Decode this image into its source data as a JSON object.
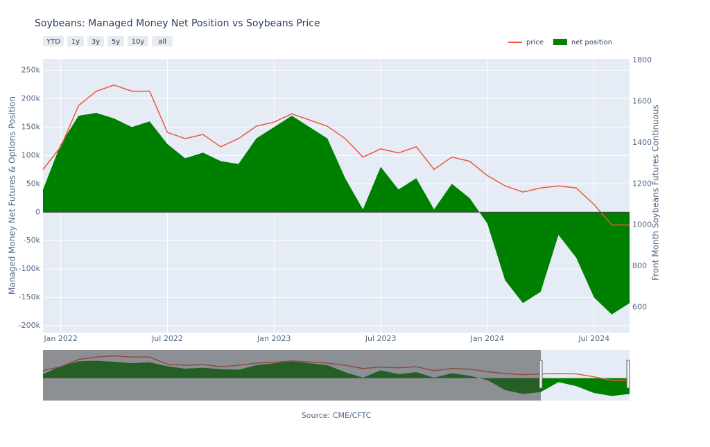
{
  "chart_data": {
    "type": "area-line",
    "title": "Soybeans: Managed Money Net Position vs Soybeans Price",
    "buttons": [
      "YTD",
      "1y",
      "3y",
      "5y",
      "10y",
      "all"
    ],
    "y_label": "Managed Money Net Futures & Options Position",
    "y2_label": "Front Month Soybeans Futures Continuous",
    "source": "Source: CME/CFTC",
    "x": [
      "2021-12",
      "2022-01",
      "2022-02",
      "2022-03",
      "2022-04",
      "2022-05",
      "2022-06",
      "2022-07",
      "2022-08",
      "2022-09",
      "2022-10",
      "2022-11",
      "2022-12",
      "2023-01",
      "2023-02",
      "2023-03",
      "2023-04",
      "2023-05",
      "2023-06",
      "2023-07",
      "2023-08",
      "2023-09",
      "2023-10",
      "2023-11",
      "2023-12",
      "2024-01",
      "2024-02",
      "2024-03",
      "2024-04",
      "2024-05",
      "2024-06",
      "2024-07",
      "2024-08",
      "2024-09"
    ],
    "series": [
      {
        "name": "price",
        "color": "#ef553b",
        "axis": "y2",
        "values": [
          1270,
          1380,
          1580,
          1650,
          1680,
          1650,
          1650,
          1450,
          1420,
          1440,
          1380,
          1420,
          1480,
          1500,
          1540,
          1510,
          1480,
          1420,
          1330,
          1370,
          1350,
          1380,
          1270,
          1330,
          1310,
          1240,
          1190,
          1160,
          1180,
          1190,
          1180,
          1100,
          1000,
          1000
        ]
      },
      {
        "name": "net position",
        "color": "#008000",
        "values": [
          40000,
          120000,
          170000,
          175000,
          165000,
          150000,
          160000,
          120000,
          95000,
          105000,
          90000,
          85000,
          130000,
          150000,
          170000,
          150000,
          130000,
          60000,
          5000,
          80000,
          40000,
          60000,
          5000,
          50000,
          25000,
          -20000,
          -120000,
          -160000,
          -140000,
          -40000,
          -80000,
          -150000,
          -180000,
          -160000
        ]
      }
    ],
    "xlim": [
      "2021-12",
      "2024-09"
    ],
    "xticks": [
      {
        "value": "2022-01",
        "label": "Jan 2022"
      },
      {
        "value": "2022-07",
        "label": "Jul 2022"
      },
      {
        "value": "2023-01",
        "label": "Jan 2023"
      },
      {
        "value": "2023-07",
        "label": "Jul 2023"
      },
      {
        "value": "2024-01",
        "label": "Jan 2024"
      },
      {
        "value": "2024-07",
        "label": "Jul 2024"
      }
    ],
    "ylim": [
      -212000,
      270000
    ],
    "yticks": [
      {
        "value": -200000,
        "label": "-200k"
      },
      {
        "value": -150000,
        "label": "-150k"
      },
      {
        "value": -100000,
        "label": "-100k"
      },
      {
        "value": -50000,
        "label": "-50k"
      },
      0,
      {
        "value": 50000,
        "label": "50k"
      },
      {
        "value": 100000,
        "label": "100k"
      },
      {
        "value": 150000,
        "label": "150k"
      },
      {
        "value": 200000,
        "label": "200k"
      },
      {
        "value": 250000,
        "label": "250k"
      }
    ],
    "y2lim": [
      477,
      1807
    ],
    "y2ticks": [
      600,
      800,
      1000,
      1200,
      1400,
      1600,
      1800
    ],
    "grid": true
  }
}
